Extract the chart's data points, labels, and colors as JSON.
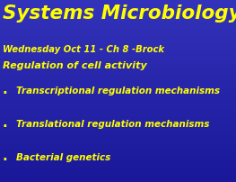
{
  "bg_color": "#2222aa",
  "title": "Systems Microbiology",
  "title_color": "#ffff00",
  "title_fontsize": 15.5,
  "subtitle1": "Wednesday Oct 11 - Ch 8 -Brock",
  "subtitle1_color": "#ffff00",
  "subtitle1_fontsize": 7.2,
  "subtitle2": "Regulation of cell activity",
  "subtitle2_color": "#ffff00",
  "subtitle2_fontsize": 8.0,
  "bullets": [
    "Transcriptional regulation mechanisms",
    "Translational regulation mechanisms",
    "Bacterial genetics"
  ],
  "bullet_color": "#ffff00",
  "bullet_fontsize": 7.5,
  "bullet_marker": "·",
  "top_bar_color": "#1a1a88"
}
